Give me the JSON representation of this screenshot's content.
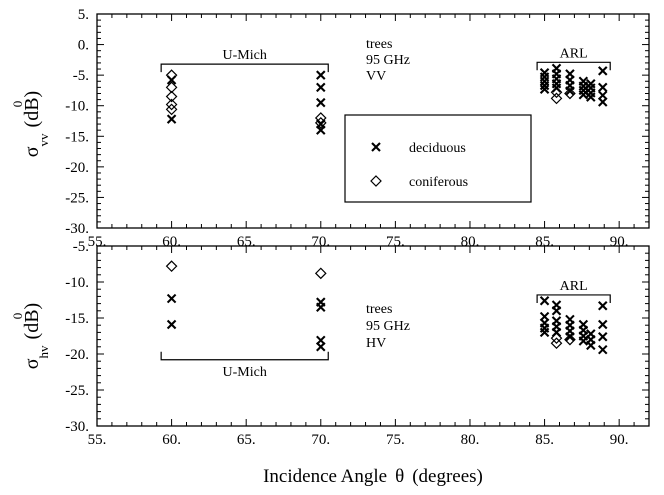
{
  "chart_data": [
    {
      "type": "scatter",
      "id": "vv",
      "title": "",
      "ylabel_symbol": "σ",
      "ylabel_superscript": "0",
      "ylabel_subscript": "vv",
      "ylabel_unit": "(dB)",
      "xlim": [
        55,
        92
      ],
      "ylim": [
        -30,
        5
      ],
      "xticks": [
        55,
        60,
        65,
        70,
        75,
        80,
        85,
        90
      ],
      "xtick_labels": [
        "55.",
        "60.",
        "65.",
        "70.",
        "75.",
        "80.",
        "85.",
        "90."
      ],
      "yticks": [
        5,
        0,
        -5,
        -10,
        -15,
        -20,
        -25,
        -30
      ],
      "ytick_labels": [
        "5.",
        "0.",
        "-5.",
        "-10.",
        "-15.",
        "-20.",
        "-25.",
        "-30."
      ],
      "annotation_lines": [
        "trees",
        "95 GHz",
        "VV"
      ],
      "brackets": [
        {
          "label": "U-Mich",
          "x_from": 59.3,
          "x_to": 70.5,
          "y": -3.2,
          "direction": "down"
        },
        {
          "label": "ARL",
          "x_from": 84.5,
          "x_to": 89.4,
          "y": -2.9,
          "direction": "down"
        }
      ],
      "legend": {
        "position": "center",
        "entries": [
          {
            "label": "deciduous",
            "marker": "x"
          },
          {
            "label": "coniferous",
            "marker": "diamond"
          }
        ]
      },
      "series": [
        {
          "name": "deciduous",
          "marker": "x",
          "points": [
            [
              60,
              -5.8
            ],
            [
              60,
              -12.2
            ],
            [
              70,
              -5.0
            ],
            [
              70,
              -7.0
            ],
            [
              70,
              -9.5
            ],
            [
              70,
              -13.0
            ],
            [
              70,
              -14.0
            ],
            [
              85,
              -4.6
            ],
            [
              85,
              -5.3
            ],
            [
              85,
              -6.0
            ],
            [
              85,
              -6.7
            ],
            [
              85,
              -7.3
            ],
            [
              85.8,
              -3.9
            ],
            [
              85.8,
              -4.8
            ],
            [
              85.8,
              -5.6
            ],
            [
              85.8,
              -6.4
            ],
            [
              85.8,
              -7.1
            ],
            [
              86.7,
              -4.8
            ],
            [
              86.7,
              -5.8
            ],
            [
              86.7,
              -6.7
            ],
            [
              86.7,
              -7.6
            ],
            [
              87.6,
              -6.0
            ],
            [
              87.6,
              -6.8
            ],
            [
              87.6,
              -7.5
            ],
            [
              87.6,
              -8.2
            ],
            [
              88.1,
              -6.4
            ],
            [
              88.1,
              -7.1
            ],
            [
              88.1,
              -7.9
            ],
            [
              88.1,
              -8.6
            ],
            [
              88.9,
              -4.3
            ],
            [
              88.9,
              -7.0
            ],
            [
              88.9,
              -8.3
            ],
            [
              88.9,
              -9.4
            ]
          ]
        },
        {
          "name": "coniferous",
          "marker": "diamond",
          "points": [
            [
              60,
              -5.0
            ],
            [
              60,
              -7.0
            ],
            [
              60,
              -8.5
            ],
            [
              60,
              -9.8
            ],
            [
              60,
              -10.6
            ],
            [
              70,
              -12.0
            ],
            [
              70,
              -12.8
            ],
            [
              85.8,
              -7.8
            ],
            [
              85.8,
              -8.8
            ],
            [
              86.7,
              -8.0
            ]
          ]
        }
      ]
    },
    {
      "type": "scatter",
      "id": "hv",
      "title": "",
      "ylabel_symbol": "σ",
      "ylabel_superscript": "0",
      "ylabel_subscript": "hv",
      "ylabel_unit": "(dB)",
      "xlabel_text": "Incidence Angle",
      "xlabel_symbol": "θ",
      "xlabel_unit": "(degrees)",
      "xlim": [
        55,
        92
      ],
      "ylim": [
        -30,
        -5
      ],
      "xticks": [
        55,
        60,
        65,
        70,
        75,
        80,
        85,
        90
      ],
      "xtick_labels": [
        "55.",
        "60.",
        "65.",
        "70.",
        "75.",
        "80.",
        "85.",
        "90."
      ],
      "yticks": [
        -5,
        -10,
        -15,
        -20,
        -25,
        -30
      ],
      "ytick_labels": [
        "-5.",
        "-10.",
        "-15.",
        "-20.",
        "-25.",
        "-30."
      ],
      "annotation_lines": [
        "trees",
        "95 GHz",
        "HV"
      ],
      "brackets": [
        {
          "label": "U-Mich",
          "x_from": 59.3,
          "x_to": 70.5,
          "y": -20.8,
          "direction": "up"
        },
        {
          "label": "ARL",
          "x_from": 84.5,
          "x_to": 89.4,
          "y": -11.8,
          "direction": "down"
        }
      ],
      "series": [
        {
          "name": "deciduous",
          "marker": "x",
          "points": [
            [
              60,
              -12.3
            ],
            [
              60,
              -15.9
            ],
            [
              70,
              -12.8
            ],
            [
              70,
              -13.5
            ],
            [
              70,
              -18.1
            ],
            [
              70,
              -19.0
            ],
            [
              85,
              -12.6
            ],
            [
              85,
              -14.8
            ],
            [
              85,
              -15.7
            ],
            [
              85,
              -16.4
            ],
            [
              85,
              -17.0
            ],
            [
              85.8,
              -13.2
            ],
            [
              85.8,
              -14.0
            ],
            [
              85.8,
              -15.4
            ],
            [
              85.8,
              -16.2
            ],
            [
              85.8,
              -17.0
            ],
            [
              86.7,
              -15.2
            ],
            [
              86.7,
              -16.0
            ],
            [
              86.7,
              -16.8
            ],
            [
              86.7,
              -17.6
            ],
            [
              87.6,
              -15.9
            ],
            [
              87.6,
              -16.7
            ],
            [
              87.6,
              -17.5
            ],
            [
              87.6,
              -18.2
            ],
            [
              88.1,
              -17.2
            ],
            [
              88.1,
              -18.0
            ],
            [
              88.1,
              -18.8
            ],
            [
              88.9,
              -13.3
            ],
            [
              88.9,
              -15.9
            ],
            [
              88.9,
              -17.6
            ],
            [
              88.9,
              -19.4
            ]
          ]
        },
        {
          "name": "coniferous",
          "marker": "diamond",
          "points": [
            [
              60,
              -7.8
            ],
            [
              70,
              -8.8
            ],
            [
              85.8,
              -17.8
            ],
            [
              85.8,
              -18.5
            ],
            [
              86.7,
              -18.0
            ]
          ]
        }
      ]
    }
  ]
}
